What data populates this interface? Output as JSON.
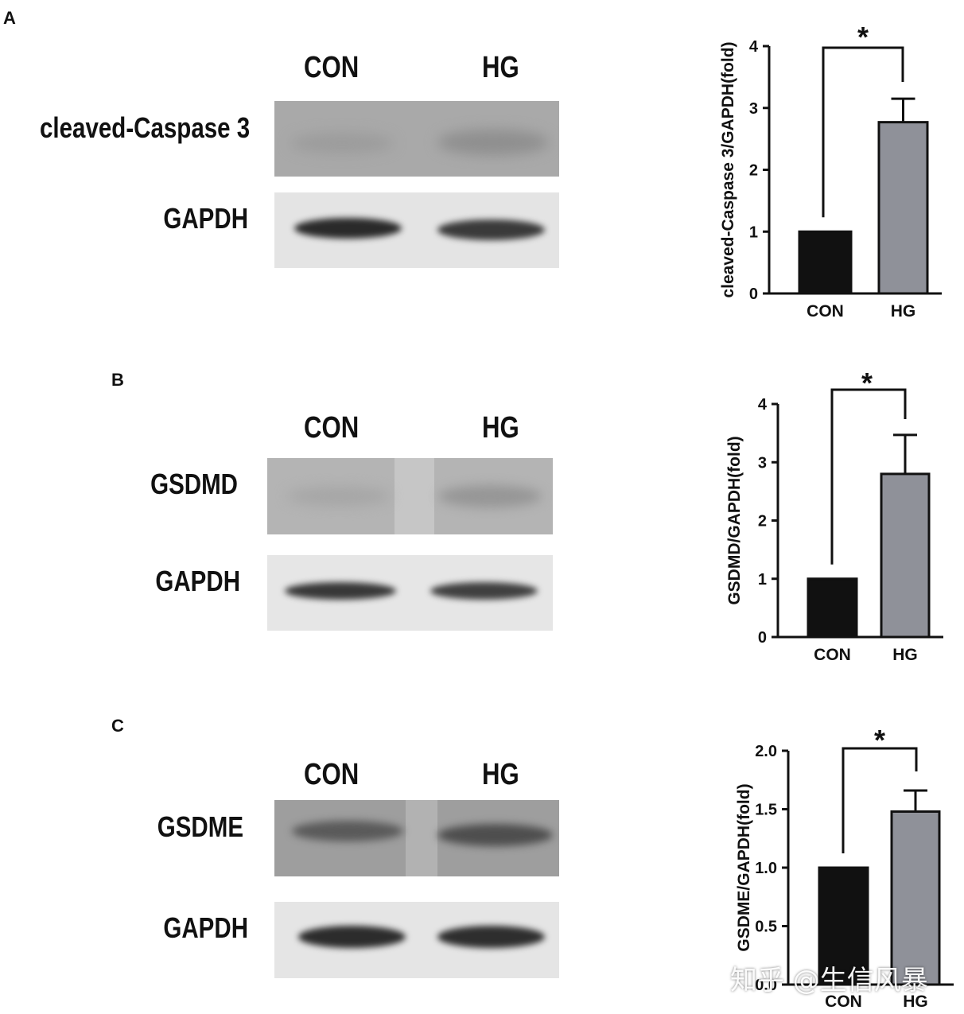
{
  "panels": [
    {
      "letter": "A",
      "lanes": [
        "CON",
        "HG"
      ],
      "rows": [
        "cleaved-Caspase 3",
        "GAPDH"
      ],
      "chart_data": {
        "type": "bar",
        "title": "",
        "categories": [
          "CON",
          "HG"
        ],
        "values": [
          1.0,
          2.77
        ],
        "errors": [
          0,
          0.38
        ],
        "ylabel": "cleaved-Caspase 3/GAPDH(fold)",
        "xlabel": "",
        "ylim": [
          0,
          4
        ],
        "yticks": [
          "0",
          "1",
          "2",
          "3",
          "4"
        ],
        "significance": "*",
        "colors": [
          "#111111",
          "#8f9199"
        ]
      }
    },
    {
      "letter": "B",
      "lanes": [
        "CON",
        "HG"
      ],
      "rows": [
        "GSDMD",
        "GAPDH"
      ],
      "chart_data": {
        "type": "bar",
        "title": "",
        "categories": [
          "CON",
          "HG"
        ],
        "values": [
          1.0,
          2.8
        ],
        "errors": [
          0,
          0.67
        ],
        "ylabel": "GSDMD/GAPDH(fold)",
        "xlabel": "",
        "ylim": [
          0,
          4
        ],
        "yticks": [
          "0",
          "1",
          "2",
          "3",
          "4"
        ],
        "significance": "*",
        "colors": [
          "#111111",
          "#8f9199"
        ]
      }
    },
    {
      "letter": "C",
      "lanes": [
        "CON",
        "HG"
      ],
      "rows": [
        "GSDME",
        "GAPDH"
      ],
      "chart_data": {
        "type": "bar",
        "title": "",
        "categories": [
          "CON",
          "HG"
        ],
        "values": [
          1.0,
          1.48
        ],
        "errors": [
          0,
          0.18
        ],
        "ylabel": "GSDME/GAPDH(fold)",
        "xlabel": "",
        "ylim": [
          0,
          2
        ],
        "yticks": [
          "0.0",
          "0.5",
          "1.0",
          "1.5",
          "2.0"
        ],
        "significance": "*",
        "colors": [
          "#111111",
          "#8f9199"
        ]
      }
    }
  ],
  "watermark": "知乎 @生信风暴"
}
